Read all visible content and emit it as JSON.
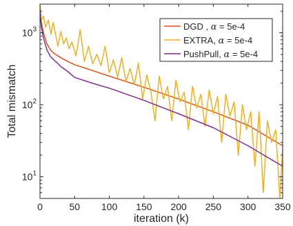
{
  "chart_data": {
    "type": "line",
    "title": "",
    "xlabel": "iteration (k)",
    "ylabel": "Total mismatch",
    "xlim": [
      0,
      350
    ],
    "ylim": [
      5,
      2500
    ],
    "yscale": "log",
    "grid": false,
    "legend_position": "top-right",
    "x_ticks": [
      0,
      50,
      100,
      150,
      200,
      250,
      300,
      350
    ],
    "y_ticks": [
      {
        "value": 10,
        "base": "10",
        "exp": "1"
      },
      {
        "value": 100,
        "base": "10",
        "exp": "2"
      },
      {
        "value": 1000,
        "base": "10",
        "exp": "3"
      }
    ],
    "series": [
      {
        "name": "DGD , α = 5e-4",
        "label_prefix": "DGD , ",
        "label_symbol": "α",
        "label_suffix": " = 5e-4",
        "color": "#D95319",
        "x": [
          0,
          2,
          5,
          10,
          15,
          20,
          30,
          40,
          50,
          75,
          100,
          150,
          200,
          250,
          300,
          350
        ],
        "y": [
          2200,
          1400,
          1000,
          700,
          580,
          520,
          450,
          400,
          360,
          300,
          250,
          175,
          120,
          80,
          52,
          27
        ]
      },
      {
        "name": "EXTRA, α = 5e-4",
        "label_prefix": "EXTRA, ",
        "label_symbol": "α",
        "label_suffix": " = 5e-4",
        "color": "#EDB120",
        "x": [
          0,
          2,
          5,
          8,
          12,
          16,
          19,
          22,
          26,
          30,
          34,
          38,
          42,
          46,
          52,
          58,
          64,
          70,
          76,
          82,
          88,
          94,
          100,
          106,
          112,
          118,
          124,
          130,
          136,
          142,
          148,
          154,
          160,
          166,
          172,
          178,
          184,
          190,
          196,
          202,
          208,
          214,
          220,
          226,
          232,
          238,
          244,
          250,
          256,
          262,
          268,
          274,
          280,
          286,
          292,
          298,
          304,
          310,
          316,
          322,
          328,
          334,
          340,
          346,
          350
        ],
        "y": [
          2500,
          1500,
          1700,
          1200,
          1500,
          950,
          1400,
          1000,
          650,
          1050,
          700,
          850,
          600,
          750,
          480,
          1100,
          400,
          650,
          370,
          500,
          350,
          650,
          280,
          420,
          240,
          450,
          210,
          320,
          190,
          380,
          120,
          260,
          150,
          60,
          250,
          120,
          180,
          60,
          220,
          110,
          150,
          45,
          180,
          90,
          140,
          50,
          160,
          75,
          130,
          30,
          140,
          70,
          110,
          20,
          100,
          45,
          80,
          14,
          80,
          6,
          60,
          30,
          45,
          5,
          25
        ]
      },
      {
        "name": "PushPull, α = 5e-4",
        "label_prefix": "PushPull, ",
        "label_symbol": "α",
        "label_suffix": " = 5e-4",
        "color": "#7E2F8E",
        "x": [
          0,
          2,
          5,
          10,
          15,
          20,
          25,
          30,
          40,
          50,
          75,
          100,
          150,
          200,
          250,
          300,
          350
        ],
        "y": [
          2000,
          1200,
          850,
          580,
          470,
          420,
          380,
          340,
          290,
          240,
          200,
          170,
          115,
          75,
          48,
          27,
          14
        ]
      }
    ]
  }
}
